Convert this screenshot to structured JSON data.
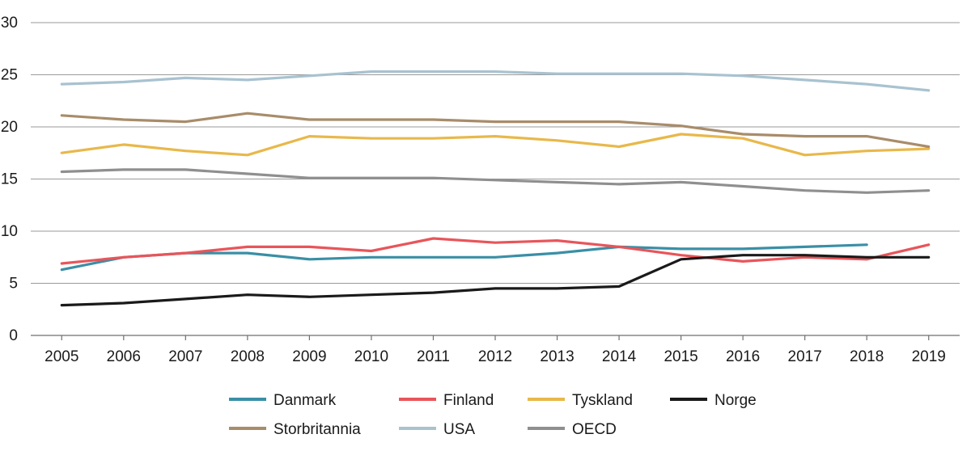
{
  "chart_data": {
    "type": "line",
    "title": "",
    "xlabel": "",
    "ylabel": "",
    "x": [
      "2005",
      "2006",
      "2007",
      "2008",
      "2009",
      "2010",
      "2011",
      "2012",
      "2013",
      "2014",
      "2015",
      "2016",
      "2017",
      "2018",
      "2019"
    ],
    "ylim": [
      0,
      30
    ],
    "yticks": [
      0,
      5,
      10,
      15,
      20,
      25,
      30
    ],
    "grid": "horizontal",
    "legend_position": "bottom",
    "series": [
      {
        "name": "Danmark",
        "color": "#3a8fa6",
        "values": [
          6.3,
          7.5,
          7.9,
          7.9,
          7.3,
          7.5,
          7.5,
          7.5,
          7.9,
          8.5,
          8.3,
          8.3,
          8.5,
          8.7,
          null
        ]
      },
      {
        "name": "Finland",
        "color": "#e8555a",
        "values": [
          6.9,
          7.5,
          7.9,
          8.5,
          8.5,
          8.1,
          9.3,
          8.9,
          9.1,
          8.5,
          7.7,
          7.1,
          7.5,
          7.3,
          8.7
        ]
      },
      {
        "name": "Tyskland",
        "color": "#e8b84a",
        "values": [
          17.5,
          18.3,
          17.7,
          17.3,
          19.1,
          18.9,
          18.9,
          19.1,
          18.7,
          18.1,
          19.3,
          18.9,
          17.3,
          17.7,
          17.9
        ]
      },
      {
        "name": "Norge",
        "color": "#1a1a1a",
        "values": [
          2.9,
          3.1,
          3.5,
          3.9,
          3.7,
          3.9,
          4.1,
          4.5,
          4.5,
          4.7,
          7.3,
          7.7,
          7.7,
          7.5,
          7.5
        ]
      },
      {
        "name": "Storbritannia",
        "color": "#a88c6a",
        "values": [
          21.1,
          20.7,
          20.5,
          21.3,
          20.7,
          20.7,
          20.7,
          20.5,
          20.5,
          20.5,
          20.1,
          19.3,
          19.1,
          19.1,
          18.1
        ]
      },
      {
        "name": "USA",
        "color": "#a8c2d0",
        "values": [
          24.1,
          24.3,
          24.7,
          24.5,
          24.9,
          25.3,
          25.3,
          25.3,
          25.1,
          25.1,
          25.1,
          24.9,
          24.5,
          24.1,
          23.5
        ]
      },
      {
        "name": "OECD",
        "color": "#8f8f8f",
        "values": [
          15.7,
          15.9,
          15.9,
          15.5,
          15.1,
          15.1,
          15.1,
          14.9,
          14.7,
          14.5,
          14.7,
          14.3,
          13.9,
          13.7,
          13.9
        ]
      }
    ]
  }
}
